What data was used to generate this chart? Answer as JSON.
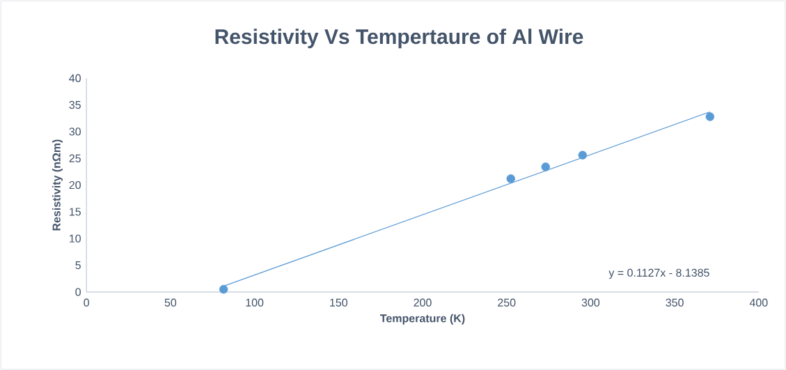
{
  "chart_data": {
    "type": "scatter",
    "title": "Resistivity Vs Tempertaure of Al Wire",
    "xlabel": "Temperature (K)",
    "ylabel": "Resistivity (nΩm)",
    "xlim": [
      0,
      400
    ],
    "ylim": [
      0,
      40
    ],
    "xticks": [
      0,
      50,
      100,
      150,
      200,
      250,
      300,
      350,
      400
    ],
    "yticks": [
      0,
      5,
      10,
      15,
      20,
      25,
      30,
      35,
      40
    ],
    "marker": "circle",
    "annotations": [
      "y = 0.1127x - 8.1385"
    ],
    "series": [
      {
        "color": "#5b9bd5",
        "x": [
          81.6,
          252.5,
          273.2,
          295.2,
          371
        ],
        "values": [
          0.5,
          21.2,
          23.4,
          25.6,
          32.8
        ]
      },
      {
        "type": "line",
        "color": "#5b9bd5",
        "marker": "none",
        "x": [
          81.6,
          371
        ],
        "values": [
          1.1,
          33.7
        ]
      }
    ]
  }
}
